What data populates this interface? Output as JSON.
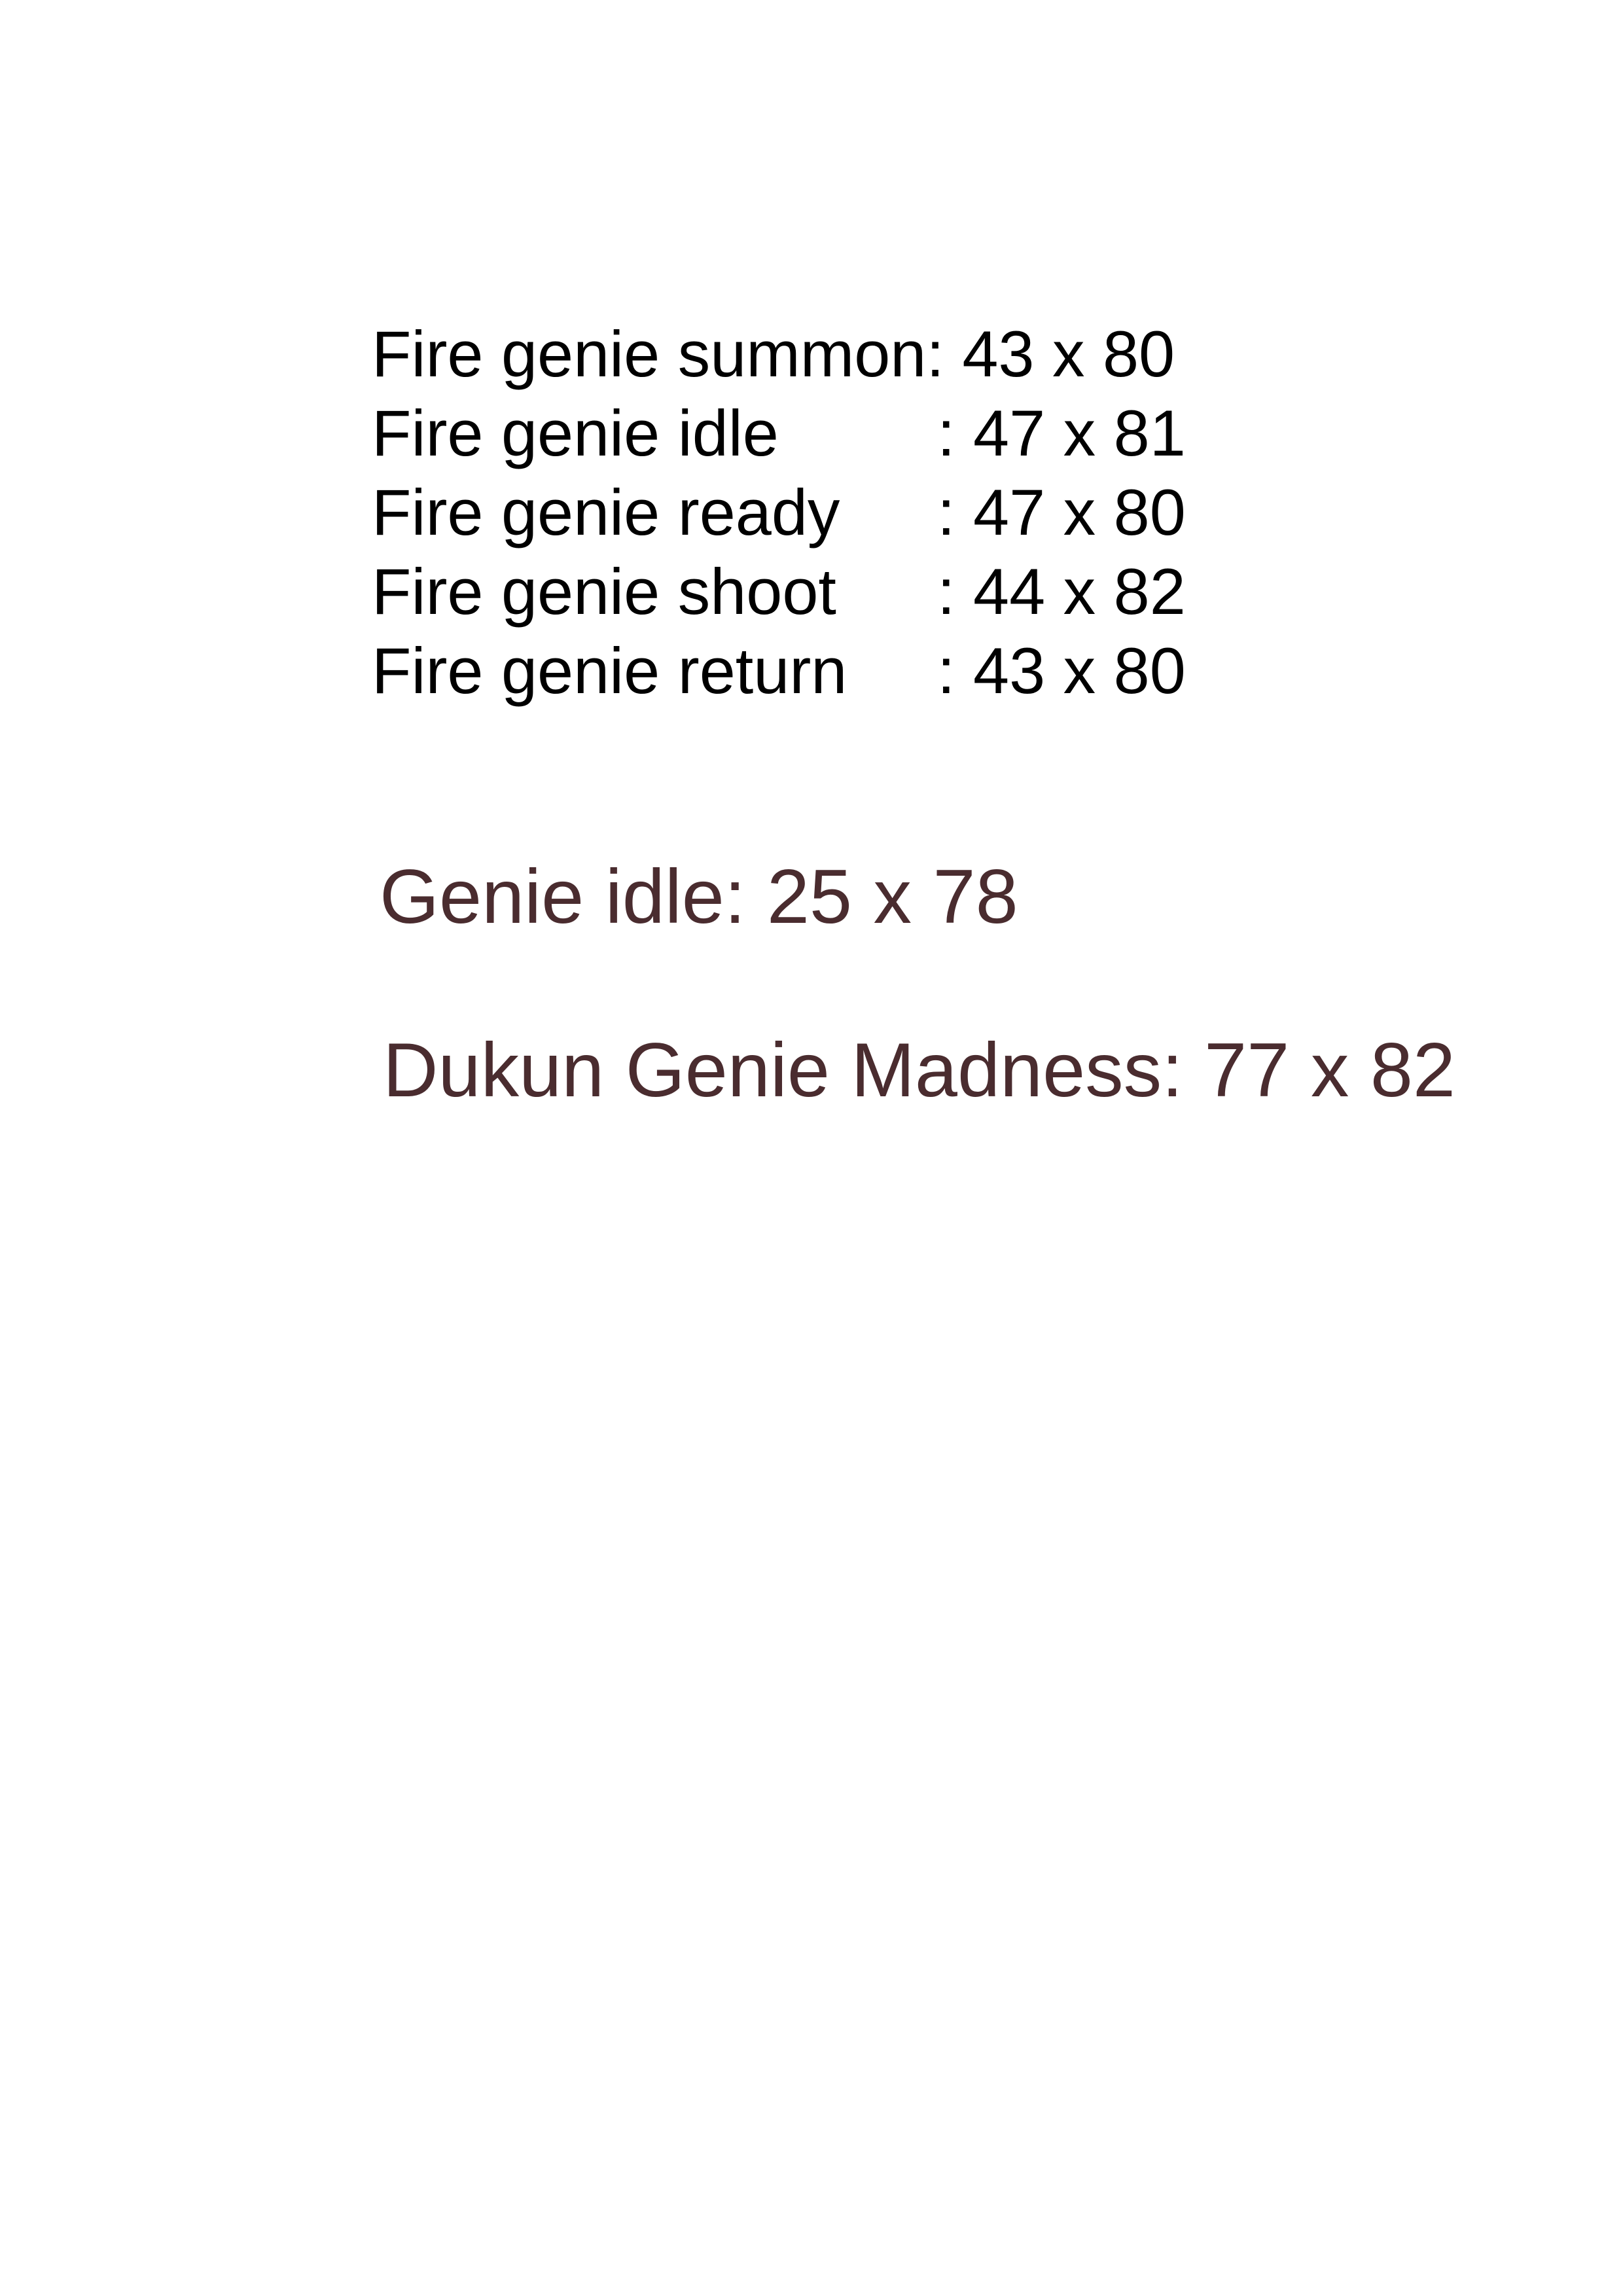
{
  "fire_genie_list": [
    {
      "label": "Fire genie summon",
      "value": ": 43 x 80"
    },
    {
      "label": "Fire genie idle",
      "value": ": 47 x 81"
    },
    {
      "label": "Fire genie ready",
      "value": ": 47 x 80"
    },
    {
      "label": "Fire genie shoot",
      "value": ": 44 x 82"
    },
    {
      "label": "Fire genie return",
      "value": ": 43 x 80"
    }
  ],
  "genie_idle": "Genie idle: 25 x 78",
  "dukun_genie_madness": "Dukun Genie Madness: 77 x 82",
  "colors": {
    "fire_list_text": "#000000",
    "large_text": "#4a2c2f",
    "background": "#ffffff"
  }
}
